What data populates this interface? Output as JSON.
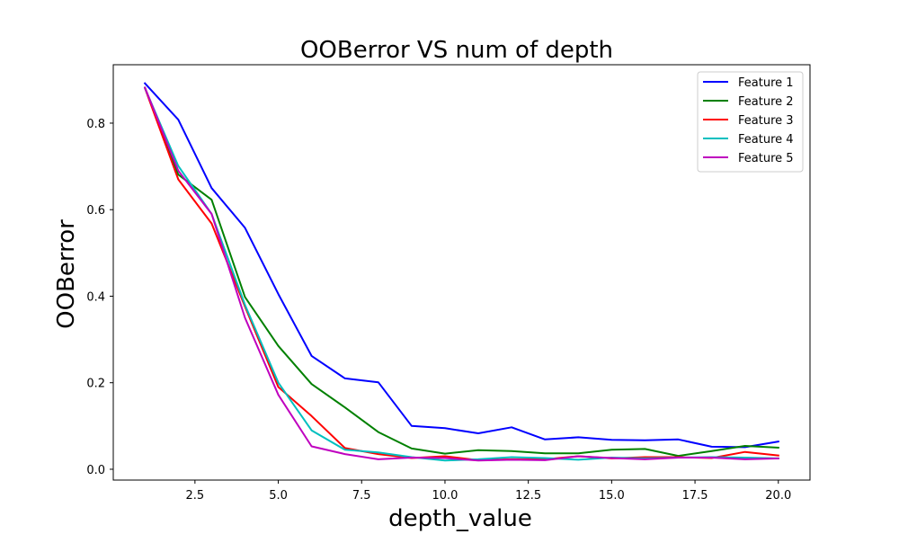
{
  "chart_data": {
    "type": "line",
    "title": "OOBerror VS num of depth",
    "xlabel": "depth_value",
    "ylabel": "OOBerror",
    "xlim": [
      0.05,
      20.95
    ],
    "ylim": [
      -0.025,
      0.935
    ],
    "xticks": [
      2.5,
      5.0,
      7.5,
      10.0,
      12.5,
      15.0,
      17.5,
      20.0
    ],
    "xtick_labels": [
      "2.5",
      "5.0",
      "7.5",
      "10.0",
      "12.5",
      "15.0",
      "17.5",
      "20.0"
    ],
    "yticks": [
      0.0,
      0.2,
      0.4,
      0.6,
      0.8
    ],
    "ytick_labels": [
      "0.0",
      "0.2",
      "0.4",
      "0.6",
      "0.8"
    ],
    "grid": false,
    "legend_position": "top-right",
    "x": [
      1,
      2,
      3,
      4,
      5,
      6,
      7,
      8,
      9,
      10,
      11,
      12,
      13,
      14,
      15,
      16,
      17,
      18,
      19,
      20
    ],
    "series": [
      {
        "name": "Feature 1",
        "color": "#0000ff",
        "values": [
          0.892,
          0.808,
          0.65,
          0.558,
          0.405,
          0.262,
          0.21,
          0.201,
          0.1,
          0.095,
          0.083,
          0.097,
          0.069,
          0.074,
          0.068,
          0.067,
          0.069,
          0.052,
          0.051,
          0.064
        ]
      },
      {
        "name": "Feature 2",
        "color": "#008000",
        "values": [
          0.882,
          0.681,
          0.623,
          0.398,
          0.285,
          0.197,
          0.143,
          0.086,
          0.048,
          0.036,
          0.044,
          0.042,
          0.037,
          0.037,
          0.045,
          0.047,
          0.031,
          0.042,
          0.054,
          0.05
        ]
      },
      {
        "name": "Feature 3",
        "color": "#ff0000",
        "values": [
          0.881,
          0.67,
          0.568,
          0.376,
          0.19,
          0.123,
          0.049,
          0.035,
          0.026,
          0.03,
          0.021,
          0.023,
          0.023,
          0.03,
          0.025,
          0.028,
          0.028,
          0.026,
          0.04,
          0.032
        ]
      },
      {
        "name": "Feature 4",
        "color": "#00bfbf",
        "values": [
          0.881,
          0.701,
          0.59,
          0.38,
          0.2,
          0.09,
          0.045,
          0.039,
          0.028,
          0.02,
          0.023,
          0.028,
          0.026,
          0.022,
          0.027,
          0.025,
          0.027,
          0.028,
          0.027,
          0.025
        ]
      },
      {
        "name": "Feature 5",
        "color": "#bf00bf",
        "values": [
          0.882,
          0.69,
          0.59,
          0.35,
          0.172,
          0.053,
          0.035,
          0.023,
          0.027,
          0.026,
          0.02,
          0.022,
          0.021,
          0.03,
          0.026,
          0.023,
          0.027,
          0.027,
          0.023,
          0.025
        ]
      }
    ]
  }
}
